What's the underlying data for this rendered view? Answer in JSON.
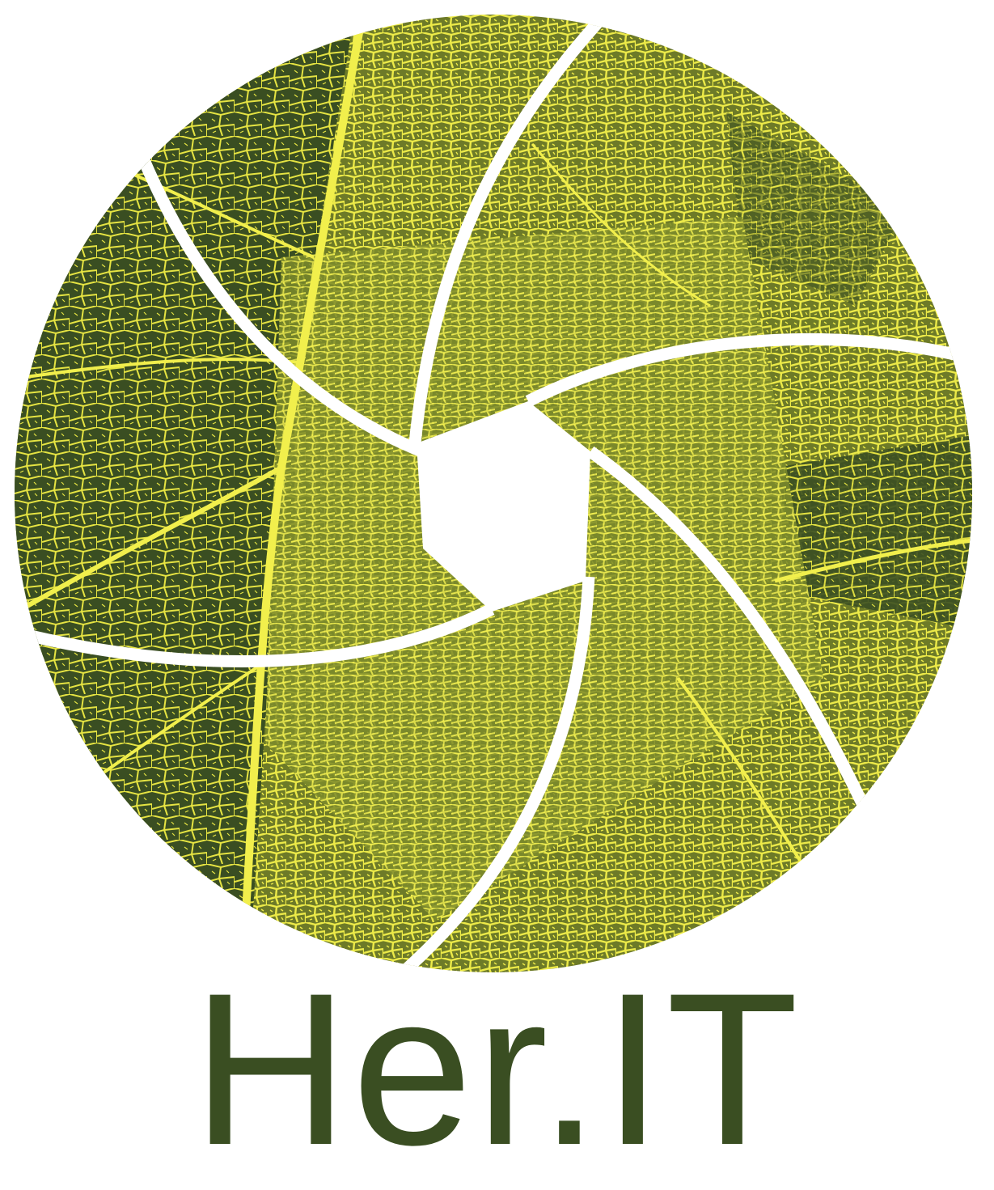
{
  "logo": {
    "brand_name": "Her.IT",
    "emblem_icon": "leaf-aperture-icon",
    "colors": {
      "dark_green": "#3a4e22",
      "mid_green": "#5b6e24",
      "leaf_yellow": "#e8e640",
      "vein_yellow": "#f1ef4c",
      "background": "#ffffff"
    }
  }
}
